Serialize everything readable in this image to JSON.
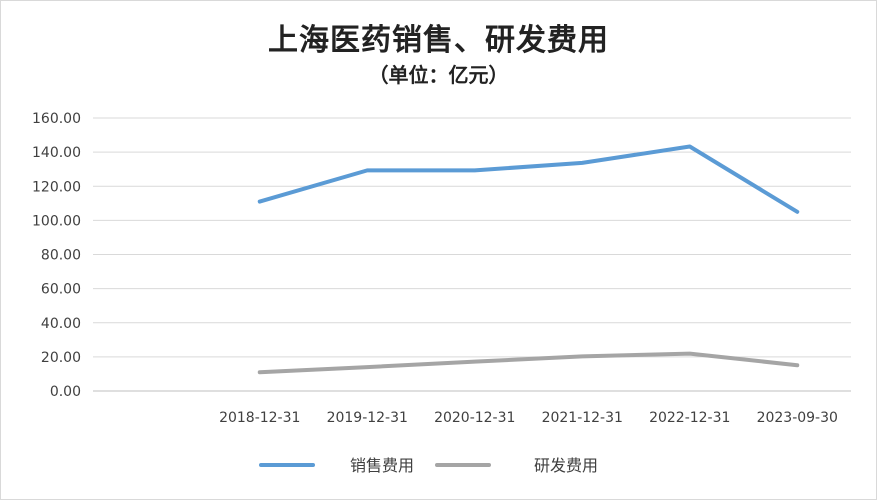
{
  "chart_data": {
    "type": "line",
    "title": "上海医药销售、研发费用",
    "subtitle": "（单位：亿元）",
    "categories": [
      "2018-12-31",
      "2019-12-31",
      "2020-12-31",
      "2021-12-31",
      "2022-12-31",
      "2023-09-30"
    ],
    "series": [
      {
        "name": "销售费用",
        "values": [
          111.0,
          129.3,
          129.3,
          133.7,
          143.3,
          105.0
        ],
        "color": "#5b9bd5"
      },
      {
        "name": "研发费用",
        "values": [
          11.0,
          14.0,
          17.2,
          20.3,
          21.9,
          15.1
        ],
        "color": "#a5a5a5"
      }
    ],
    "yticks": [
      "0.00",
      "20.00",
      "40.00",
      "60.00",
      "80.00",
      "100.00",
      "120.00",
      "140.00",
      "160.00"
    ],
    "ylim": [
      0,
      160
    ],
    "grid": true,
    "legend": "bottom"
  }
}
